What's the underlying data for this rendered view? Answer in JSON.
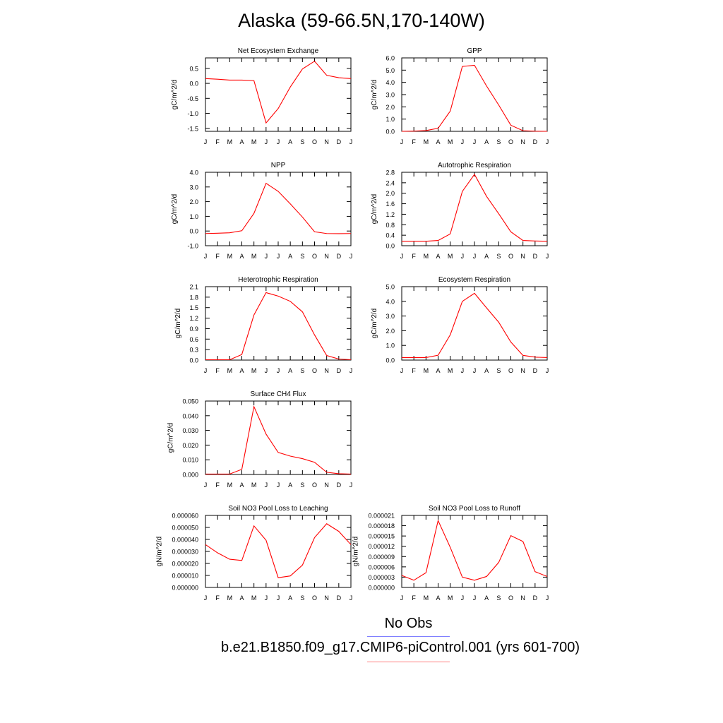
{
  "title": "Alaska (59-66.5N,170-140W)",
  "colors": {
    "model_line": "#ff0000",
    "obs_legend_line": "#8080ff",
    "model_legend_line": "#ff8080"
  },
  "legend": [
    {
      "label": "No Obs",
      "color": "#8080ff"
    },
    {
      "label": "b.e21.B1850.f09_g17.CMIP6-piControl.001 (yrs 601-700)",
      "color": "#ff8080"
    }
  ],
  "chart_data": [
    {
      "type": "line",
      "title": "Net Ecosystem Exchange",
      "ylabel": "gC/m^2/d",
      "categories": [
        "J",
        "F",
        "M",
        "A",
        "M",
        "J",
        "J",
        "A",
        "S",
        "O",
        "N",
        "D",
        "J"
      ],
      "ylim": [
        -1.6,
        0.85
      ],
      "yticks": [
        "0.5",
        "0.0",
        "-0.5",
        "-1.0",
        "-1.5"
      ],
      "values": [
        0.16,
        0.14,
        0.11,
        0.11,
        0.09,
        -1.32,
        -0.84,
        -0.12,
        0.48,
        0.74,
        0.27,
        0.19,
        0.16
      ]
    },
    {
      "type": "line",
      "title": "GPP",
      "ylabel": "gC/m^2/d",
      "categories": [
        "J",
        "F",
        "M",
        "A",
        "M",
        "J",
        "J",
        "A",
        "S",
        "O",
        "N",
        "D",
        "J"
      ],
      "ylim": [
        0.0,
        6.0
      ],
      "yticks": [
        "6.0",
        "5.0",
        "4.0",
        "3.0",
        "2.0",
        "1.0",
        "0.0"
      ],
      "values": [
        0.0,
        0.02,
        0.06,
        0.25,
        1.65,
        5.3,
        5.4,
        3.7,
        2.15,
        0.5,
        0.05,
        0.01,
        0.0
      ]
    },
    {
      "type": "line",
      "title": "NPP",
      "ylabel": "gC/m^2/d",
      "categories": [
        "J",
        "F",
        "M",
        "A",
        "M",
        "J",
        "J",
        "A",
        "S",
        "O",
        "N",
        "D",
        "J"
      ],
      "ylim": [
        -1.0,
        4.0
      ],
      "yticks": [
        "4.0",
        "3.0",
        "2.0",
        "1.0",
        "0.0",
        "-1.0"
      ],
      "values": [
        -0.17,
        -0.15,
        -0.12,
        0.02,
        1.2,
        3.25,
        2.7,
        1.85,
        0.95,
        -0.05,
        -0.17,
        -0.18,
        -0.17
      ]
    },
    {
      "type": "line",
      "title": "Autotrophic Respiration",
      "ylabel": "gC/m^2/d",
      "categories": [
        "J",
        "F",
        "M",
        "A",
        "M",
        "J",
        "J",
        "A",
        "S",
        "O",
        "N",
        "D",
        "J"
      ],
      "ylim": [
        0.0,
        2.8
      ],
      "yticks": [
        "2.8",
        "2.4",
        "2.0",
        "1.6",
        "1.2",
        "0.8",
        "0.4",
        "0.0"
      ],
      "values": [
        0.17,
        0.17,
        0.17,
        0.2,
        0.45,
        2.07,
        2.72,
        1.88,
        1.22,
        0.53,
        0.2,
        0.18,
        0.17
      ]
    },
    {
      "type": "line",
      "title": "Heterotrophic Respiration",
      "ylabel": "gC/m^2/d",
      "categories": [
        "J",
        "F",
        "M",
        "A",
        "M",
        "J",
        "J",
        "A",
        "S",
        "O",
        "N",
        "D",
        "J"
      ],
      "ylim": [
        0.0,
        2.1
      ],
      "yticks": [
        "2.1",
        "1.8",
        "1.5",
        "1.2",
        "0.9",
        "0.6",
        "0.3",
        "0.0"
      ],
      "values": [
        0.01,
        0.01,
        0.01,
        0.16,
        1.29,
        1.93,
        1.83,
        1.68,
        1.38,
        0.72,
        0.13,
        0.03,
        0.01
      ]
    },
    {
      "type": "line",
      "title": "Ecosystem Respiration",
      "ylabel": "gC/m^2/d",
      "categories": [
        "J",
        "F",
        "M",
        "A",
        "M",
        "J",
        "J",
        "A",
        "S",
        "O",
        "N",
        "D",
        "J"
      ],
      "ylim": [
        0.0,
        5.0
      ],
      "yticks": [
        "5.0",
        "4.0",
        "3.0",
        "2.0",
        "1.0",
        "0.0"
      ],
      "values": [
        0.17,
        0.17,
        0.17,
        0.33,
        1.72,
        4.0,
        4.55,
        3.55,
        2.58,
        1.23,
        0.32,
        0.2,
        0.17
      ]
    },
    {
      "type": "line",
      "title": "Surface CH4 Flux",
      "ylabel": "gC/m^2/d",
      "categories": [
        "J",
        "F",
        "M",
        "A",
        "M",
        "J",
        "J",
        "A",
        "S",
        "O",
        "N",
        "D",
        "J"
      ],
      "ylim": [
        0.0,
        0.05
      ],
      "yticks": [
        "0.050",
        "0.040",
        "0.030",
        "0.020",
        "0.010",
        "0.000"
      ],
      "values": [
        0.0003,
        0.0003,
        0.0003,
        0.0035,
        0.0462,
        0.0275,
        0.015,
        0.0125,
        0.0108,
        0.0083,
        0.0015,
        0.0005,
        0.0003
      ]
    },
    {
      "type": "line",
      "title": "Soil NO3 Pool Loss to Leaching",
      "ylabel": "gN/m^2/d",
      "categories": [
        "J",
        "F",
        "M",
        "A",
        "M",
        "J",
        "J",
        "A",
        "S",
        "O",
        "N",
        "D",
        "J"
      ],
      "ylim": [
        0.0,
        6e-05
      ],
      "yticks": [
        "0.000060",
        "0.000050",
        "0.000040",
        "0.000030",
        "0.000020",
        "0.000010",
        "0.000000"
      ],
      "values": [
        3.57e-05,
        2.88e-05,
        2.35e-05,
        2.25e-05,
        5.13e-05,
        3.93e-05,
        8.1e-06,
        9.6e-06,
        1.86e-05,
        4.15e-05,
        5.31e-05,
        4.67e-05,
        3.57e-05
      ]
    },
    {
      "type": "line",
      "title": "Soil NO3 Pool Loss to Runoff",
      "ylabel": "gN/m^2/d",
      "categories": [
        "J",
        "F",
        "M",
        "A",
        "M",
        "J",
        "J",
        "A",
        "S",
        "O",
        "N",
        "D",
        "J"
      ],
      "ylim": [
        0.0,
        2.1e-05
      ],
      "yticks": [
        "0.000021",
        "0.000018",
        "0.000015",
        "0.000012",
        "0.000009",
        "0.000006",
        "0.000003",
        "0.000000"
      ],
      "values": [
        3.5e-06,
        2.1e-06,
        4.3e-06,
        1.95e-05,
        1.17e-05,
        3e-06,
        2.1e-06,
        3.2e-06,
        7.3e-06,
        1.51e-05,
        1.34e-05,
        4.6e-06,
        3.2e-06
      ]
    }
  ]
}
